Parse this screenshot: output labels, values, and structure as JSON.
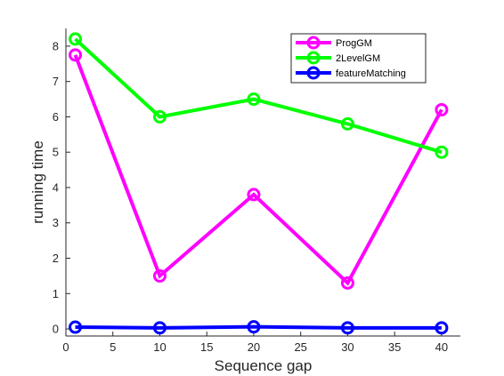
{
  "chart_data": {
    "type": "line",
    "xlabel": "Sequence gap",
    "ylabel": "running time",
    "xlim": [
      0,
      42
    ],
    "ylim": [
      -0.2,
      8.5
    ],
    "xticks": [
      0,
      5,
      10,
      15,
      20,
      25,
      30,
      35,
      40
    ],
    "yticks": [
      0,
      1,
      2,
      3,
      4,
      5,
      6,
      7,
      8
    ],
    "grid": false,
    "legend_position": "top-right",
    "marker": "circle",
    "x": [
      1,
      10,
      20,
      30,
      40
    ],
    "series": [
      {
        "name": "ProgGM",
        "color": "#ff00ff",
        "values": [
          7.75,
          1.5,
          3.8,
          1.3,
          6.2
        ]
      },
      {
        "name": "2LevelGM",
        "color": "#00ff00",
        "values": [
          8.2,
          6.0,
          6.5,
          5.8,
          5.0
        ]
      },
      {
        "name": "featureMatching",
        "color": "#0000ff",
        "values": [
          0.05,
          0.03,
          0.06,
          0.03,
          0.03
        ]
      }
    ]
  }
}
